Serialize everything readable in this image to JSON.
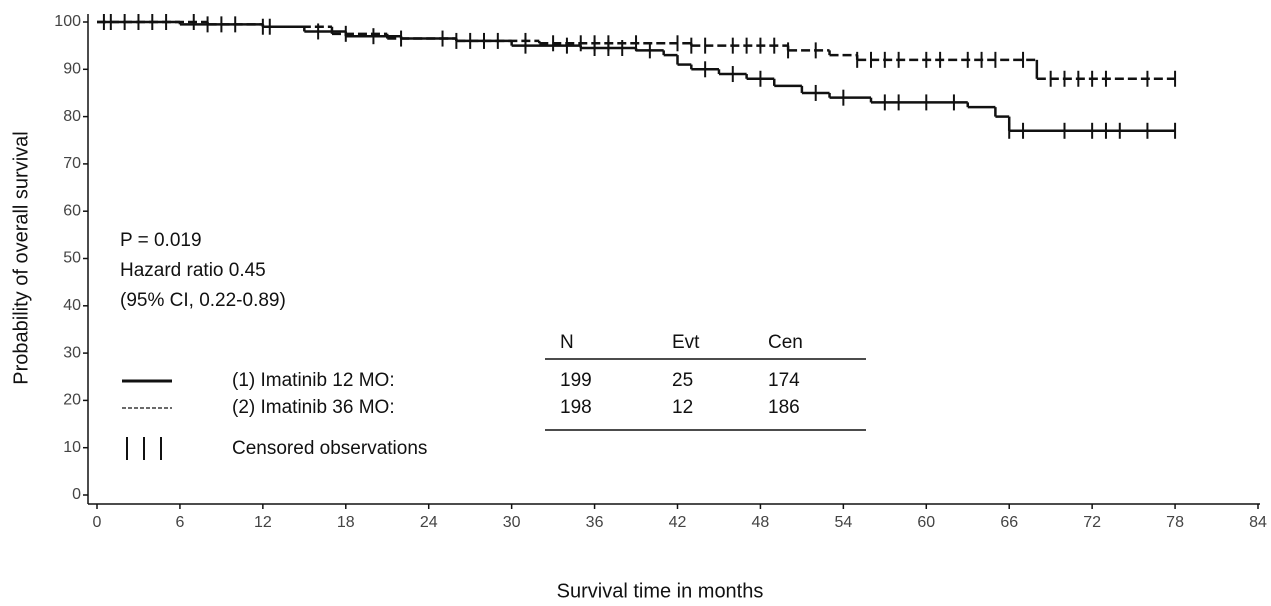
{
  "chart_data": {
    "type": "step",
    "x_label": "Survival time in months",
    "y_label": "Probability of overall survival",
    "xlim": [
      0,
      84
    ],
    "xticks": [
      0,
      6,
      12,
      18,
      24,
      30,
      36,
      42,
      48,
      54,
      60,
      66,
      72,
      78,
      84
    ],
    "ylim": [
      0,
      100
    ],
    "yticks": [
      0,
      10,
      20,
      30,
      40,
      50,
      60,
      70,
      80,
      90,
      100
    ],
    "annotations": [
      "P = 0.019",
      "Hazard ratio 0.45",
      "(95% CI, 0.22-0.89)"
    ],
    "table_headers": [
      "N",
      "Evt",
      "Cen"
    ],
    "censored_label": "Censored observations",
    "series": [
      {
        "name": "(1) Imatinib 12 MO:",
        "color": "#111111",
        "line_style": "solid",
        "n": 199,
        "events": 25,
        "censored": 174,
        "x": [
          0,
          6,
          12,
          15,
          18,
          22,
          26,
          30,
          35,
          39,
          41,
          42,
          43,
          45,
          47,
          49,
          51,
          53,
          56,
          63,
          65,
          66,
          78
        ],
        "values": [
          100,
          99.5,
          99,
          98,
          97,
          96.5,
          96,
          95,
          94.5,
          94,
          93,
          91,
          90,
          89,
          88,
          86.5,
          85,
          84,
          83,
          82,
          80,
          77,
          77
        ],
        "censored_x": [
          1,
          3,
          5,
          8,
          10,
          12,
          16,
          20,
          25,
          28,
          31,
          34,
          36,
          37,
          38,
          40,
          44,
          46,
          48,
          52,
          54,
          57,
          58,
          60,
          62,
          66,
          67,
          70,
          72,
          73,
          74,
          76,
          78
        ]
      },
      {
        "name": "(2) Imatinib 36 MO:",
        "color": "#111111",
        "line_style": "dashed",
        "n": 198,
        "events": 12,
        "censored": 186,
        "x": [
          0,
          8,
          12,
          17,
          21,
          26,
          32,
          43,
          50,
          53,
          55,
          68,
          78
        ],
        "values": [
          100,
          99.5,
          99,
          97.5,
          96.5,
          96,
          95.5,
          95,
          94,
          93,
          92,
          88,
          88
        ],
        "censored_x": [
          0.5,
          2,
          4,
          7,
          9,
          12.5,
          18,
          22,
          26,
          27,
          29,
          31,
          33,
          35,
          36,
          37,
          39,
          42,
          43,
          44,
          46,
          47,
          48,
          49,
          50,
          52,
          55,
          56,
          57,
          58,
          60,
          61,
          63,
          64,
          65,
          67,
          69,
          70,
          71,
          72,
          73,
          76,
          78
        ]
      }
    ]
  }
}
